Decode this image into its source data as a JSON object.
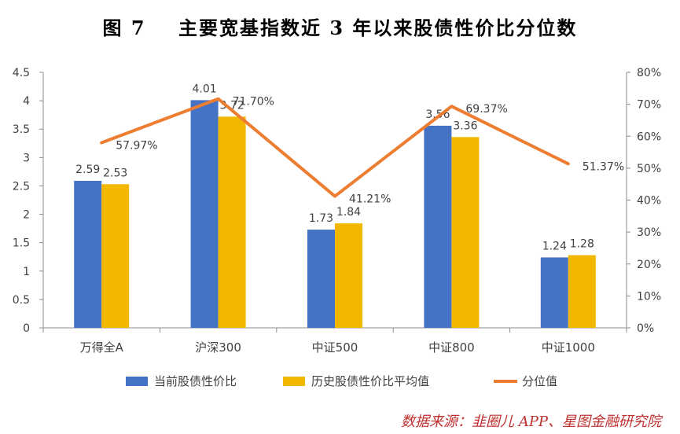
{
  "title": "图 7    主要宽基指数近 3 年以来股债性价比分位数",
  "source": "数据来源：韭圈儿 APP、星图金融研究院",
  "chart_data": {
    "type": "bar",
    "categories": [
      "万得全A",
      "沪深300",
      "中证500",
      "中证800",
      "中证1000"
    ],
    "series": [
      {
        "name": "当前股债性价比",
        "type": "bar",
        "axis": "left",
        "color": "#4472c4",
        "values": [
          2.59,
          4.01,
          1.73,
          3.56,
          1.24
        ],
        "labels": [
          "2.59",
          "4.01",
          "1.73",
          "3.56",
          "1.24"
        ]
      },
      {
        "name": "历史股债性价比平均值",
        "type": "bar",
        "axis": "left",
        "color": "#f2b800",
        "values": [
          2.53,
          3.72,
          1.84,
          3.36,
          1.28
        ],
        "labels": [
          "2.53",
          "3.72",
          "1.84",
          "3.36",
          "1.28"
        ]
      },
      {
        "name": "分位值",
        "type": "line",
        "axis": "right",
        "color": "#ed7d31",
        "values": [
          57.97,
          71.7,
          41.21,
          69.37,
          51.37
        ],
        "labels": [
          "57.97%",
          "71.70%",
          "41.21%",
          "69.37%",
          "51.37%"
        ]
      }
    ],
    "ylim": [
      0,
      4.5
    ],
    "y2lim": [
      0,
      80
    ],
    "yticks": [
      "0",
      "0.5",
      "1",
      "1.5",
      "2",
      "2.5",
      "3",
      "3.5",
      "4",
      "4.5"
    ],
    "y2ticks": [
      "0%",
      "10%",
      "20%",
      "30%",
      "40%",
      "50%",
      "60%",
      "70%",
      "80%"
    ],
    "legend": "bottom",
    "grid": false
  }
}
